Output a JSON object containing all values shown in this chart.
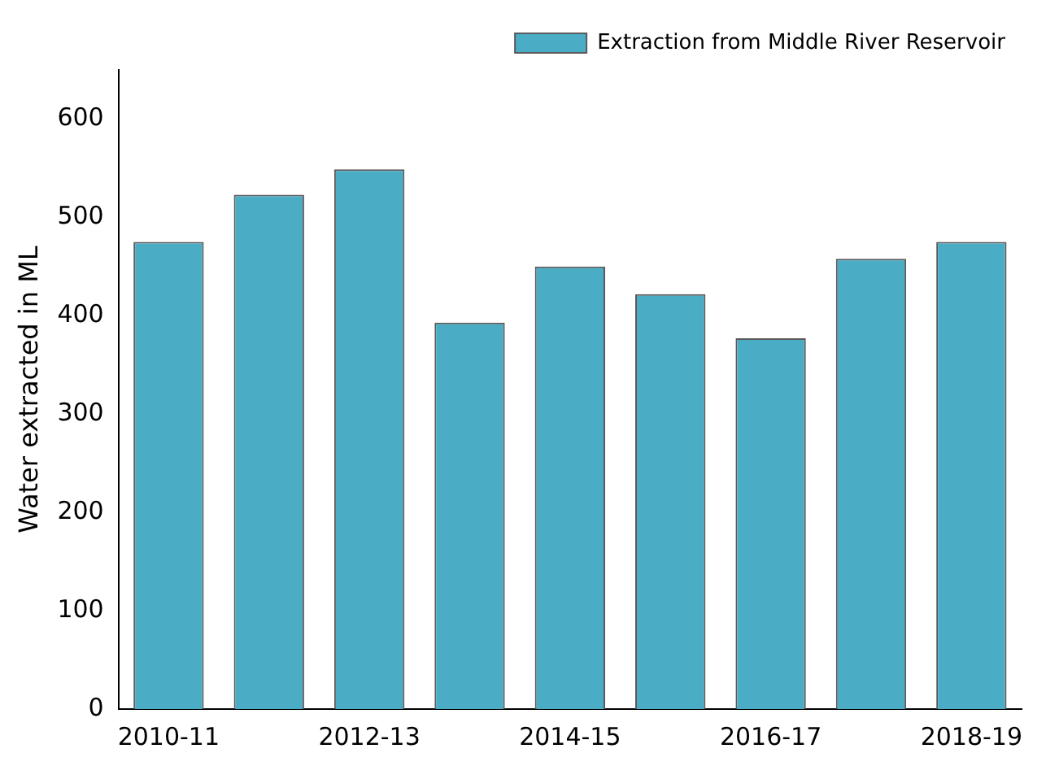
{
  "chart_data": {
    "type": "bar",
    "ylabel": "Water extracted in ML",
    "categories": [
      "2010-11",
      null,
      "2012-13",
      null,
      "2014-15",
      null,
      "2016-17",
      null,
      "2018-19"
    ],
    "series": [
      {
        "name": "Extraction from Middle River Reservoir",
        "color": "#4bacc6",
        "values": [
          475,
          523,
          549,
          393,
          450,
          422,
          377,
          458,
          475
        ]
      }
    ],
    "ylim": [
      0,
      650
    ],
    "yticks": [
      0,
      100,
      200,
      300,
      400,
      500,
      600
    ],
    "grid": false,
    "legend": "top right"
  }
}
